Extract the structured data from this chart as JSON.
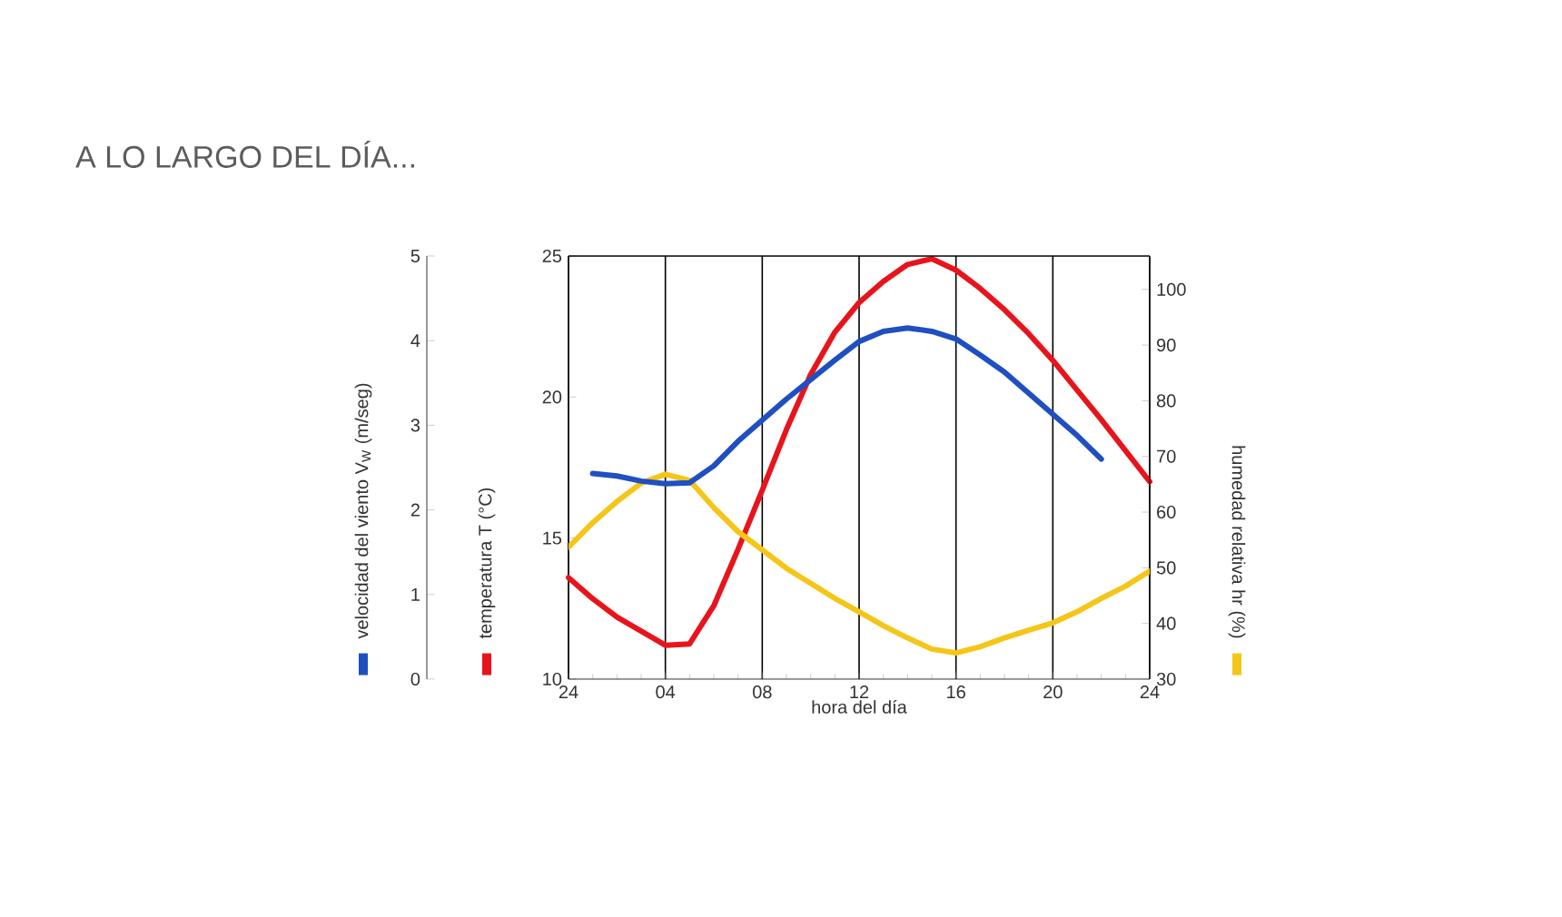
{
  "chart_data": {
    "type": "line",
    "title": "A LO LARGO DEL DÍA...",
    "xlabel": "hora del día",
    "ylabel": "temperatura T (°C)",
    "y2label": "humedad relativa hr (%)",
    "y3label": "velocidad del viento V$_{W}$ (m/seg)",
    "categories": [
      "24",
      null,
      null,
      null,
      "04",
      null,
      null,
      null,
      "08",
      null,
      null,
      null,
      "12",
      null,
      null,
      null,
      "16",
      null,
      null,
      null,
      "20",
      null,
      null,
      null,
      "24"
    ],
    "ylim": [
      10,
      25
    ],
    "yticks": [
      10,
      15,
      20,
      25
    ],
    "y2lim": [
      30,
      106
    ],
    "y2ticks": [
      30,
      40,
      50,
      60,
      70,
      80,
      90,
      100
    ],
    "y3lim": [
      0,
      5
    ],
    "y3ticks": [
      0,
      1,
      2,
      3,
      4,
      5
    ],
    "grid": "x",
    "series": [
      {
        "color": "#e8141c",
        "axis": "y",
        "values": [
          13.6,
          12.85,
          12.2,
          11.7,
          11.2,
          11.25,
          12.6,
          14.6,
          16.7,
          18.85,
          20.8,
          22.3,
          23.35,
          24.1,
          24.7,
          24.9,
          24.5,
          23.85,
          23.1,
          22.25,
          21.3,
          20.25,
          19.2,
          18.1,
          17.0
        ]
      },
      {
        "color": "#f5c518",
        "axis": "y2",
        "values": [
          53.7,
          58.1,
          61.9,
          65.2,
          66.8,
          65.7,
          60.8,
          56.5,
          53.2,
          49.9,
          47.2,
          44.5,
          42.1,
          39.6,
          37.4,
          35.4,
          34.7,
          35.8,
          37.4,
          38.8,
          40.1,
          42.1,
          44.5,
          46.7,
          49.4
        ]
      },
      {
        "color": "#1f4fc0",
        "axis": "y3",
        "values": [
          null,
          2.43,
          2.4,
          2.34,
          2.31,
          2.32,
          2.52,
          2.81,
          3.06,
          3.31,
          3.54,
          3.77,
          3.99,
          4.11,
          4.15,
          4.11,
          4.02,
          3.83,
          3.63,
          3.38,
          3.13,
          2.88,
          2.6,
          null,
          null
        ]
      }
    ]
  }
}
